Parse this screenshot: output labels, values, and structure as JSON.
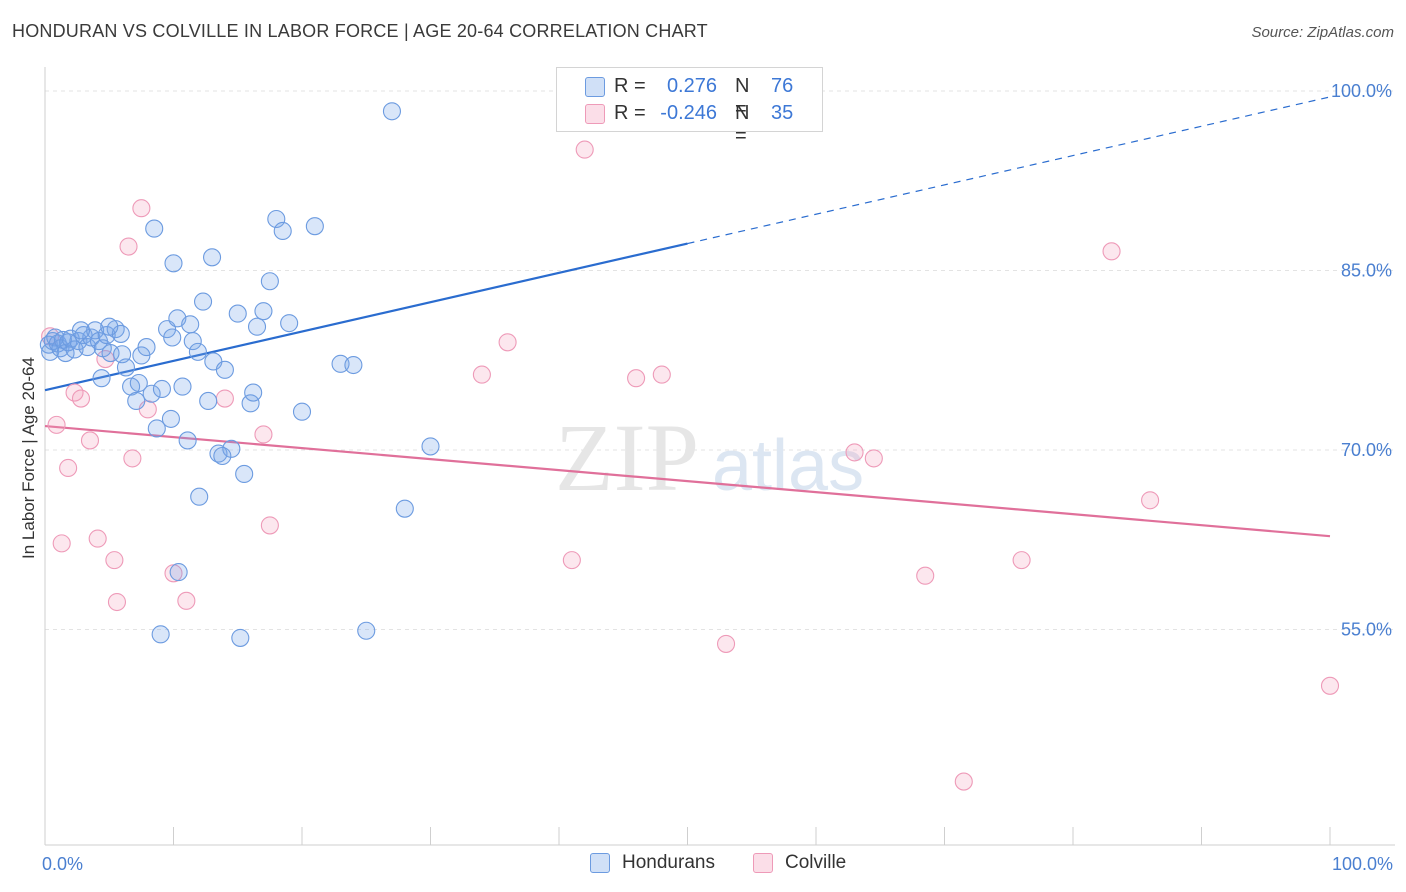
{
  "header": {
    "title": "HONDURAN VS COLVILLE IN LABOR FORCE | AGE 20-64 CORRELATION CHART",
    "source": "Source: ZipAtlas.com"
  },
  "watermark": {
    "zip": "ZIP",
    "atlas": "atlas"
  },
  "legend": {
    "hondurans": {
      "r_label": "R =",
      "r_value": "0.276",
      "n_label": "N =",
      "n_value": "76"
    },
    "colville": {
      "r_label": "R =",
      "r_value": "-0.246",
      "n_label": "N =",
      "n_value": "35"
    }
  },
  "bottom_legend": {
    "hondurans": "Hondurans",
    "colville": "Colville"
  },
  "colors": {
    "blue_fill": "rgba(120,165,232,0.28)",
    "blue_stroke": "#6c9be0",
    "blue_line": "#2a6ccf",
    "pink_fill": "rgba(244,160,188,0.25)",
    "pink_stroke": "#ee9ab8",
    "pink_line": "#e0709a",
    "tick_text": "#4a7fd0"
  },
  "chart_data": {
    "type": "scatter",
    "title": "HONDURAN VS COLVILLE IN LABOR FORCE | AGE 20-64 CORRELATION CHART",
    "xlabel": "",
    "ylabel": "In Labor Force | Age 20-64",
    "xlim": [
      0,
      100
    ],
    "ylim": [
      37,
      102
    ],
    "x_tick_labels": [
      {
        "value": 0,
        "label": "0.0%"
      },
      {
        "value": 100,
        "label": "100.0%"
      }
    ],
    "y_tick_labels": [
      {
        "value": 55,
        "label": "55.0%"
      },
      {
        "value": 70,
        "label": "70.0%"
      },
      {
        "value": 85,
        "label": "85.0%"
      },
      {
        "value": 100,
        "label": "100.0%"
      }
    ],
    "grid": true,
    "legend_position": "top-center",
    "series": [
      {
        "name": "Hondurans",
        "color": "#6c9be0",
        "points": [
          [
            0.3,
            78.8
          ],
          [
            0.4,
            78.2
          ],
          [
            0.6,
            79.1
          ],
          [
            0.8,
            79.4
          ],
          [
            1.0,
            78.9
          ],
          [
            1.2,
            78.5
          ],
          [
            1.4,
            79.2
          ],
          [
            1.6,
            78.1
          ],
          [
            1.8,
            79.0
          ],
          [
            2.0,
            79.3
          ],
          [
            2.3,
            78.4
          ],
          [
            2.6,
            79.1
          ],
          [
            3.0,
            79.6
          ],
          [
            3.3,
            78.6
          ],
          [
            3.6,
            79.4
          ],
          [
            3.9,
            80.0
          ],
          [
            4.2,
            79.1
          ],
          [
            4.5,
            78.5
          ],
          [
            4.8,
            79.6
          ],
          [
            5.1,
            78.1
          ],
          [
            5.5,
            80.1
          ],
          [
            5.9,
            79.7
          ],
          [
            6.3,
            76.9
          ],
          [
            6.7,
            75.3
          ],
          [
            7.1,
            74.1
          ],
          [
            7.5,
            77.9
          ],
          [
            7.9,
            78.6
          ],
          [
            8.3,
            74.7
          ],
          [
            8.7,
            71.8
          ],
          [
            9.1,
            75.1
          ],
          [
            9.5,
            80.1
          ],
          [
            9.9,
            79.4
          ],
          [
            10.3,
            81.0
          ],
          [
            10.7,
            75.3
          ],
          [
            11.1,
            70.8
          ],
          [
            11.5,
            79.1
          ],
          [
            11.9,
            78.2
          ],
          [
            12.3,
            82.4
          ],
          [
            12.7,
            74.1
          ],
          [
            13.1,
            77.4
          ],
          [
            13.5,
            69.7
          ],
          [
            14.0,
            76.7
          ],
          [
            14.5,
            70.1
          ],
          [
            15.0,
            81.4
          ],
          [
            15.5,
            68.0
          ],
          [
            16.0,
            73.9
          ],
          [
            16.5,
            80.3
          ],
          [
            17.0,
            81.6
          ],
          [
            17.5,
            84.1
          ],
          [
            18.0,
            89.3
          ],
          [
            18.5,
            88.3
          ],
          [
            19.0,
            80.6
          ],
          [
            20.0,
            73.2
          ],
          [
            21.0,
            88.7
          ],
          [
            23.0,
            77.2
          ],
          [
            24.0,
            77.1
          ],
          [
            25.0,
            54.9
          ],
          [
            27.0,
            98.3
          ],
          [
            28.0,
            65.1
          ],
          [
            30.0,
            70.3
          ],
          [
            8.5,
            88.5
          ],
          [
            9.0,
            54.6
          ],
          [
            10.0,
            85.6
          ],
          [
            12.0,
            66.1
          ],
          [
            13.0,
            86.1
          ],
          [
            13.8,
            69.5
          ],
          [
            15.2,
            54.3
          ],
          [
            4.4,
            76.0
          ],
          [
            6.0,
            78.0
          ],
          [
            2.8,
            80.0
          ],
          [
            16.2,
            74.8
          ],
          [
            11.3,
            80.5
          ],
          [
            9.8,
            72.6
          ],
          [
            5.0,
            80.3
          ],
          [
            7.3,
            75.6
          ],
          [
            10.4,
            59.8
          ]
        ]
      },
      {
        "name": "Colville",
        "color": "#ee9ab8",
        "points": [
          [
            0.4,
            79.5
          ],
          [
            0.9,
            72.1
          ],
          [
            1.3,
            62.2
          ],
          [
            1.8,
            68.5
          ],
          [
            2.3,
            74.8
          ],
          [
            2.8,
            74.3
          ],
          [
            3.5,
            70.8
          ],
          [
            4.1,
            62.6
          ],
          [
            4.7,
            77.6
          ],
          [
            5.4,
            60.8
          ],
          [
            5.6,
            57.3
          ],
          [
            6.5,
            87.0
          ],
          [
            6.8,
            69.3
          ],
          [
            7.5,
            90.2
          ],
          [
            8.0,
            73.4
          ],
          [
            10.0,
            59.7
          ],
          [
            11.0,
            57.4
          ],
          [
            14.0,
            74.3
          ],
          [
            17.0,
            71.3
          ],
          [
            17.5,
            63.7
          ],
          [
            34.0,
            76.3
          ],
          [
            36.0,
            79.0
          ],
          [
            41.0,
            60.8
          ],
          [
            42.0,
            95.1
          ],
          [
            46.0,
            76.0
          ],
          [
            48.0,
            76.3
          ],
          [
            53.0,
            53.8
          ],
          [
            63.0,
            69.8
          ],
          [
            64.5,
            69.3
          ],
          [
            68.5,
            59.5
          ],
          [
            71.5,
            42.3
          ],
          [
            76.0,
            60.8
          ],
          [
            83.0,
            86.6
          ],
          [
            86.0,
            65.8
          ],
          [
            100.0,
            50.3
          ]
        ]
      }
    ],
    "trend_lines": [
      {
        "series": "Hondurans",
        "x": [
          0,
          100
        ],
        "y": [
          75.0,
          99.5
        ],
        "solid_until_x": 50
      },
      {
        "series": "Colville",
        "x": [
          0,
          100
        ],
        "y": [
          72.0,
          62.8
        ]
      }
    ]
  }
}
